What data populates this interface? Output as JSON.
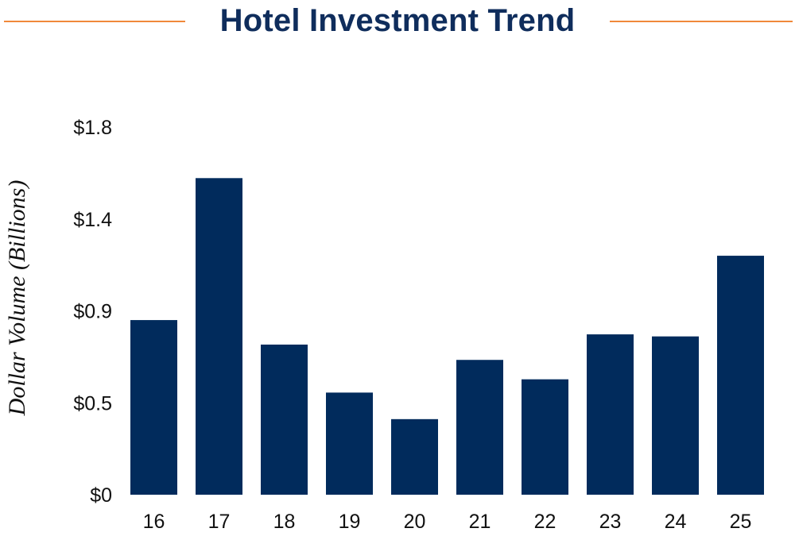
{
  "header": {
    "title": "Hotel Investment Trend"
  },
  "colors": {
    "bar": "#012b5c",
    "title": "#0f2d5c",
    "rule": "#f0883a"
  },
  "chart_data": {
    "type": "bar",
    "title": "Hotel Investment Trend",
    "xlabel": "",
    "ylabel": "Dollar Volume (Billions)",
    "categories": [
      "16",
      "17",
      "18",
      "19",
      "20",
      "21",
      "22",
      "23",
      "24",
      "25"
    ],
    "values": [
      0.855,
      1.55,
      0.735,
      0.5,
      0.37,
      0.66,
      0.565,
      0.785,
      0.775,
      1.17
    ],
    "yticks": [
      {
        "value": 0,
        "label": "$0"
      },
      {
        "value": 0.45,
        "label": "$0.5"
      },
      {
        "value": 0.9,
        "label": "$0.9"
      },
      {
        "value": 1.35,
        "label": "$1.4"
      },
      {
        "value": 1.8,
        "label": "$1.8"
      }
    ],
    "ylim": [
      0,
      1.8
    ],
    "grid": false,
    "legend": "none"
  }
}
